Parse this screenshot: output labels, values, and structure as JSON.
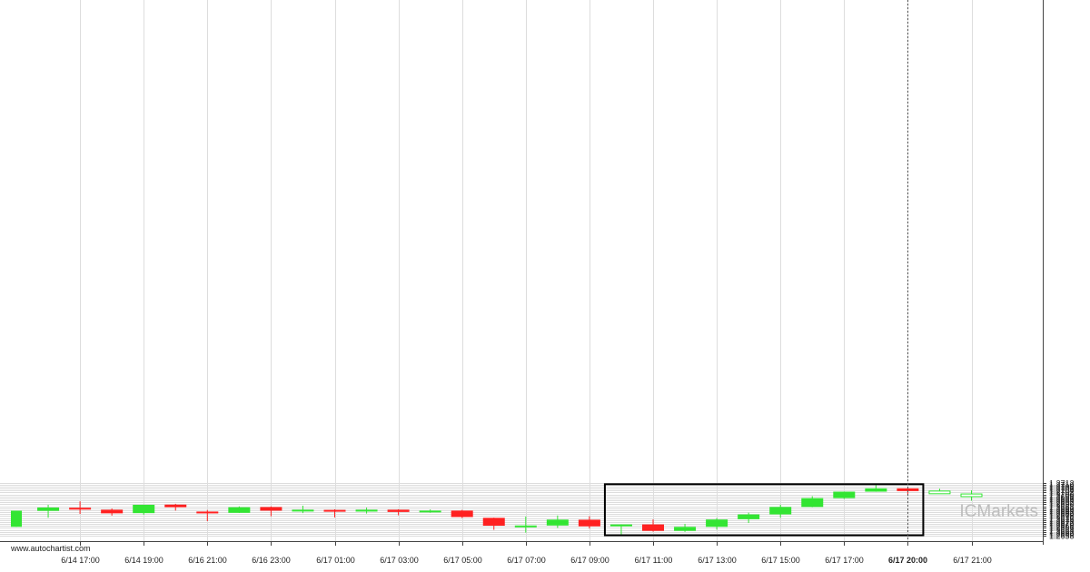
{
  "watermark": "www.autochartist.com",
  "brand": {
    "prefix": "IC",
    "name": "Markets"
  },
  "colors": {
    "bullish": "#33e533",
    "bearish": "#ff2121",
    "grid": "#dddddd",
    "frame": "#000000",
    "brand": "#bdbdbd"
  },
  "chart_data": {
    "type": "candlestick",
    "y_axis_side": "right",
    "ylim": [
      1.2657,
      1.2712
    ],
    "yticks": [
      "1.2658",
      "1.2660",
      "1.2662",
      "1.2664",
      "1.2666",
      "1.2668",
      "1.2670",
      "1.2672",
      "1.2674",
      "1.2676",
      "1.2678",
      "1.2680",
      "1.2682",
      "1.2684",
      "1.2686",
      "1.2688",
      "1.2690",
      "1.2692",
      "1.2694",
      "1.2696",
      "1.2698",
      "1.2700",
      "1.2702",
      "1.2704",
      "1.2706",
      "1.2708",
      "1.2710",
      "1.2712"
    ],
    "xticks": [
      {
        "label": "6/14 17:00",
        "index": 2,
        "bold": false
      },
      {
        "label": "6/14 19:00",
        "index": 4,
        "bold": false
      },
      {
        "label": "6/16 21:00",
        "index": 6,
        "bold": false
      },
      {
        "label": "6/16 23:00",
        "index": 8,
        "bold": false
      },
      {
        "label": "6/17 01:00",
        "index": 10,
        "bold": false
      },
      {
        "label": "6/17 03:00",
        "index": 12,
        "bold": false
      },
      {
        "label": "6/17 05:00",
        "index": 14,
        "bold": false
      },
      {
        "label": "6/17 07:00",
        "index": 16,
        "bold": false
      },
      {
        "label": "6/17 09:00",
        "index": 18,
        "bold": false
      },
      {
        "label": "6/17 11:00",
        "index": 20,
        "bold": false
      },
      {
        "label": "6/17 13:00",
        "index": 22,
        "bold": false
      },
      {
        "label": "6/17 15:00",
        "index": 24,
        "bold": false
      },
      {
        "label": "6/17 17:00",
        "index": 26,
        "bold": false
      },
      {
        "label": "6/17 20:00",
        "index": 28,
        "bold": true
      },
      {
        "label": "6/17 21:00",
        "index": 30,
        "bold": false
      }
    ],
    "candles": [
      {
        "o": 1.2667,
        "h": 1.26835,
        "l": 1.2667,
        "c": 1.26835
      },
      {
        "o": 1.26833,
        "h": 1.26895,
        "l": 1.26763,
        "c": 1.26867
      },
      {
        "o": 1.26865,
        "h": 1.2693,
        "l": 1.26802,
        "c": 1.26846
      },
      {
        "o": 1.26845,
        "h": 1.26858,
        "l": 1.26785,
        "c": 1.26808
      },
      {
        "o": 1.2681,
        "h": 1.26896,
        "l": 1.26794,
        "c": 1.26895
      },
      {
        "o": 1.26897,
        "h": 1.26905,
        "l": 1.26836,
        "c": 1.2687
      },
      {
        "o": 1.26826,
        "h": 1.26842,
        "l": 1.26728,
        "c": 1.26808
      },
      {
        "o": 1.26813,
        "h": 1.26879,
        "l": 1.26812,
        "c": 1.2687
      },
      {
        "o": 1.26872,
        "h": 1.26878,
        "l": 1.26778,
        "c": 1.26835
      },
      {
        "o": 1.26836,
        "h": 1.26886,
        "l": 1.2681,
        "c": 1.26845
      },
      {
        "o": 1.26843,
        "h": 1.26848,
        "l": 1.26766,
        "c": 1.26826
      },
      {
        "o": 1.26826,
        "h": 1.26866,
        "l": 1.26806,
        "c": 1.26845
      },
      {
        "o": 1.26845,
        "h": 1.26849,
        "l": 1.26788,
        "c": 1.26822
      },
      {
        "o": 1.26822,
        "h": 1.26847,
        "l": 1.26814,
        "c": 1.26836
      },
      {
        "o": 1.26836,
        "h": 1.26843,
        "l": 1.26761,
        "c": 1.2677
      },
      {
        "o": 1.26762,
        "h": 1.26764,
        "l": 1.2664,
        "c": 1.26682
      },
      {
        "o": 1.26681,
        "h": 1.26775,
        "l": 1.26611,
        "c": 1.26684
      },
      {
        "o": 1.26684,
        "h": 1.26786,
        "l": 1.26659,
        "c": 1.26744
      },
      {
        "o": 1.26743,
        "h": 1.26778,
        "l": 1.26653,
        "c": 1.26675
      },
      {
        "o": 1.26675,
        "h": 1.26695,
        "l": 1.26589,
        "c": 1.26695
      },
      {
        "o": 1.26695,
        "h": 1.26745,
        "l": 1.26622,
        "c": 1.26629
      },
      {
        "o": 1.26629,
        "h": 1.26701,
        "l": 1.26619,
        "c": 1.2667
      },
      {
        "o": 1.2667,
        "h": 1.2676,
        "l": 1.26642,
        "c": 1.26745
      },
      {
        "o": 1.26748,
        "h": 1.26815,
        "l": 1.26709,
        "c": 1.26797
      },
      {
        "o": 1.26797,
        "h": 1.26895,
        "l": 1.26763,
        "c": 1.26873
      },
      {
        "o": 1.26873,
        "h": 1.26983,
        "l": 1.2687,
        "c": 1.26963
      },
      {
        "o": 1.26963,
        "h": 1.2703,
        "l": 1.26955,
        "c": 1.27029
      },
      {
        "o": 1.27029,
        "h": 1.27101,
        "l": 1.27028,
        "c": 1.27063
      },
      {
        "o": 1.27063,
        "h": 1.27065,
        "l": 1.26998,
        "c": 1.27035
      },
      {
        "o": 1.27035,
        "h": 1.2706,
        "l": 1.27029,
        "c": 1.2704,
        "hollow": true
      },
      {
        "o": 1.26998,
        "h": 1.27043,
        "l": 1.26938,
        "c": 1.2701,
        "hollow": true
      }
    ],
    "highlight_box": {
      "from_index": 19,
      "to_index": 28,
      "top": 1.27105,
      "bottom": 1.26584
    },
    "current_time_index": 28,
    "grid": true
  }
}
